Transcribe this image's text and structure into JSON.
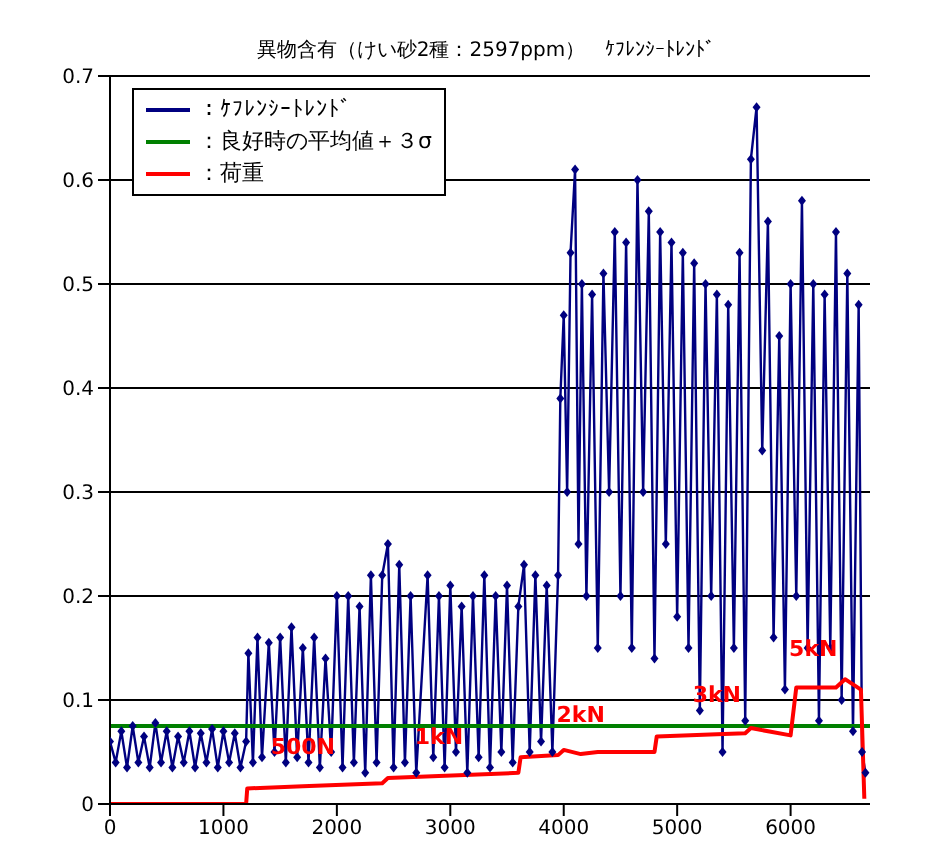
{
  "chart_data": {
    "type": "line",
    "title": "異物含有（けい砂2種：2597ppm）　ｹﾌﾚﾝｼｰﾄﾚﾝﾄﾞ",
    "xlim": [
      0,
      6700
    ],
    "xticks": [
      0,
      1000,
      2000,
      3000,
      4000,
      5000,
      6000
    ],
    "ylim": [
      0,
      0.7
    ],
    "yticks": [
      0,
      0.1,
      0.2,
      0.3,
      0.4,
      0.5,
      0.6,
      0.7
    ],
    "grid": "y",
    "legend": "top left",
    "series": [
      {
        "name": "：ｹﾌﾚﾝｼｰﾄﾚﾝﾄﾞ",
        "color": "#000080",
        "marker": "diamond",
        "x": [
          0,
          50,
          100,
          150,
          200,
          250,
          300,
          350,
          400,
          450,
          500,
          550,
          600,
          650,
          700,
          750,
          800,
          850,
          900,
          950,
          1000,
          1050,
          1100,
          1150,
          1200,
          1220,
          1260,
          1300,
          1340,
          1400,
          1450,
          1500,
          1550,
          1600,
          1650,
          1700,
          1750,
          1800,
          1850,
          1900,
          1950,
          2000,
          2050,
          2100,
          2150,
          2200,
          2250,
          2300,
          2350,
          2400,
          2450,
          2500,
          2550,
          2600,
          2650,
          2700,
          2800,
          2850,
          2900,
          2950,
          3000,
          3050,
          3100,
          3150,
          3200,
          3250,
          3300,
          3350,
          3400,
          3450,
          3500,
          3550,
          3600,
          3650,
          3700,
          3750,
          3800,
          3850,
          3900,
          3950,
          3970,
          4000,
          4030,
          4060,
          4100,
          4130,
          4160,
          4200,
          4250,
          4300,
          4350,
          4400,
          4450,
          4500,
          4550,
          4600,
          4650,
          4700,
          4750,
          4800,
          4850,
          4900,
          4950,
          5000,
          5050,
          5100,
          5150,
          5200,
          5250,
          5300,
          5350,
          5400,
          5450,
          5500,
          5550,
          5600,
          5650,
          5700,
          5750,
          5800,
          5850,
          5900,
          5950,
          6000,
          6050,
          6100,
          6150,
          6200,
          6250,
          6300,
          6350,
          6400,
          6450,
          6500,
          6550,
          6600,
          6630,
          6660
        ],
        "values": [
          0.06,
          0.04,
          0.07,
          0.035,
          0.075,
          0.04,
          0.065,
          0.035,
          0.078,
          0.04,
          0.07,
          0.035,
          0.065,
          0.04,
          0.07,
          0.035,
          0.068,
          0.04,
          0.072,
          0.035,
          0.07,
          0.04,
          0.068,
          0.035,
          0.06,
          0.145,
          0.04,
          0.16,
          0.045,
          0.155,
          0.05,
          0.16,
          0.04,
          0.17,
          0.045,
          0.15,
          0.04,
          0.16,
          0.035,
          0.14,
          0.05,
          0.2,
          0.035,
          0.2,
          0.04,
          0.19,
          0.03,
          0.22,
          0.04,
          0.22,
          0.25,
          0.035,
          0.23,
          0.04,
          0.2,
          0.03,
          0.22,
          0.045,
          0.2,
          0.035,
          0.21,
          0.05,
          0.19,
          0.03,
          0.2,
          0.045,
          0.22,
          0.035,
          0.2,
          0.05,
          0.21,
          0.04,
          0.19,
          0.23,
          0.05,
          0.22,
          0.06,
          0.21,
          0.05,
          0.22,
          0.39,
          0.47,
          0.3,
          0.53,
          0.61,
          0.25,
          0.5,
          0.2,
          0.49,
          0.15,
          0.51,
          0.3,
          0.55,
          0.2,
          0.54,
          0.15,
          0.6,
          0.3,
          0.57,
          0.14,
          0.55,
          0.25,
          0.54,
          0.18,
          0.53,
          0.15,
          0.52,
          0.09,
          0.5,
          0.2,
          0.49,
          0.05,
          0.48,
          0.15,
          0.53,
          0.08,
          0.62,
          0.67,
          0.34,
          0.56,
          0.16,
          0.45,
          0.11,
          0.5,
          0.2,
          0.58,
          0.15,
          0.5,
          0.08,
          0.49,
          0.15,
          0.55,
          0.1,
          0.51,
          0.07,
          0.48,
          0.05,
          0.03
        ]
      },
      {
        "name": "：良好時の平均値＋３σ",
        "color": "#008000",
        "marker": "none",
        "x": [
          0,
          6700
        ],
        "values": [
          0.075,
          0.075
        ]
      },
      {
        "name": "：荷重",
        "color": "#ff0000",
        "marker": "none",
        "x": [
          0,
          1200,
          1210,
          1700,
          2400,
          2450,
          2900,
          3600,
          3620,
          3950,
          4000,
          4150,
          4300,
          4800,
          4820,
          5350,
          5600,
          5650,
          6000,
          6050,
          6200,
          6400,
          6480,
          6620,
          6650
        ],
        "values": [
          0,
          0,
          0.015,
          0.017,
          0.02,
          0.025,
          0.027,
          0.03,
          0.045,
          0.047,
          0.052,
          0.048,
          0.05,
          0.05,
          0.065,
          0.067,
          0.068,
          0.073,
          0.066,
          0.112,
          0.112,
          0.112,
          0.12,
          0.11,
          0.005
        ]
      }
    ],
    "annotations": [
      {
        "text": "500N",
        "x": 1700,
        "y": 0.017
      },
      {
        "text": "1kN",
        "x": 2900,
        "y": 0.027
      },
      {
        "text": "2kN",
        "x": 4150,
        "y": 0.048
      },
      {
        "text": "3kN",
        "x": 5350,
        "y": 0.067
      },
      {
        "text": "5kN",
        "x": 6200,
        "y": 0.112
      }
    ]
  }
}
